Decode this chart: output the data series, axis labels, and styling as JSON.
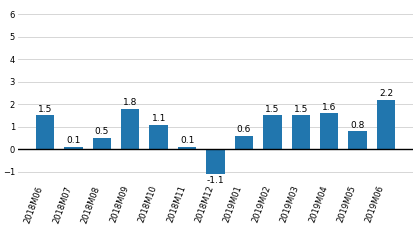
{
  "categories": [
    "2018M06",
    "2018M07",
    "2018M08",
    "2018M09",
    "2018M10",
    "2018M11",
    "2018M12",
    "2019M01",
    "2019M02",
    "2019M03",
    "2019M04",
    "2019M05",
    "2019M06"
  ],
  "values": [
    1.5,
    0.1,
    0.5,
    1.8,
    1.1,
    0.1,
    -1.1,
    0.6,
    1.5,
    1.5,
    1.6,
    0.8,
    2.2
  ],
  "bar_color": "#2176ae",
  "ylim": [
    -1.5,
    6.5
  ],
  "yticks": [
    -1,
    0,
    1,
    2,
    3,
    4,
    5,
    6
  ],
  "background_color": "#ffffff",
  "grid_color": "#d0d0d0",
  "label_fontsize": 6.5,
  "tick_fontsize": 6.0,
  "bar_width": 0.65
}
